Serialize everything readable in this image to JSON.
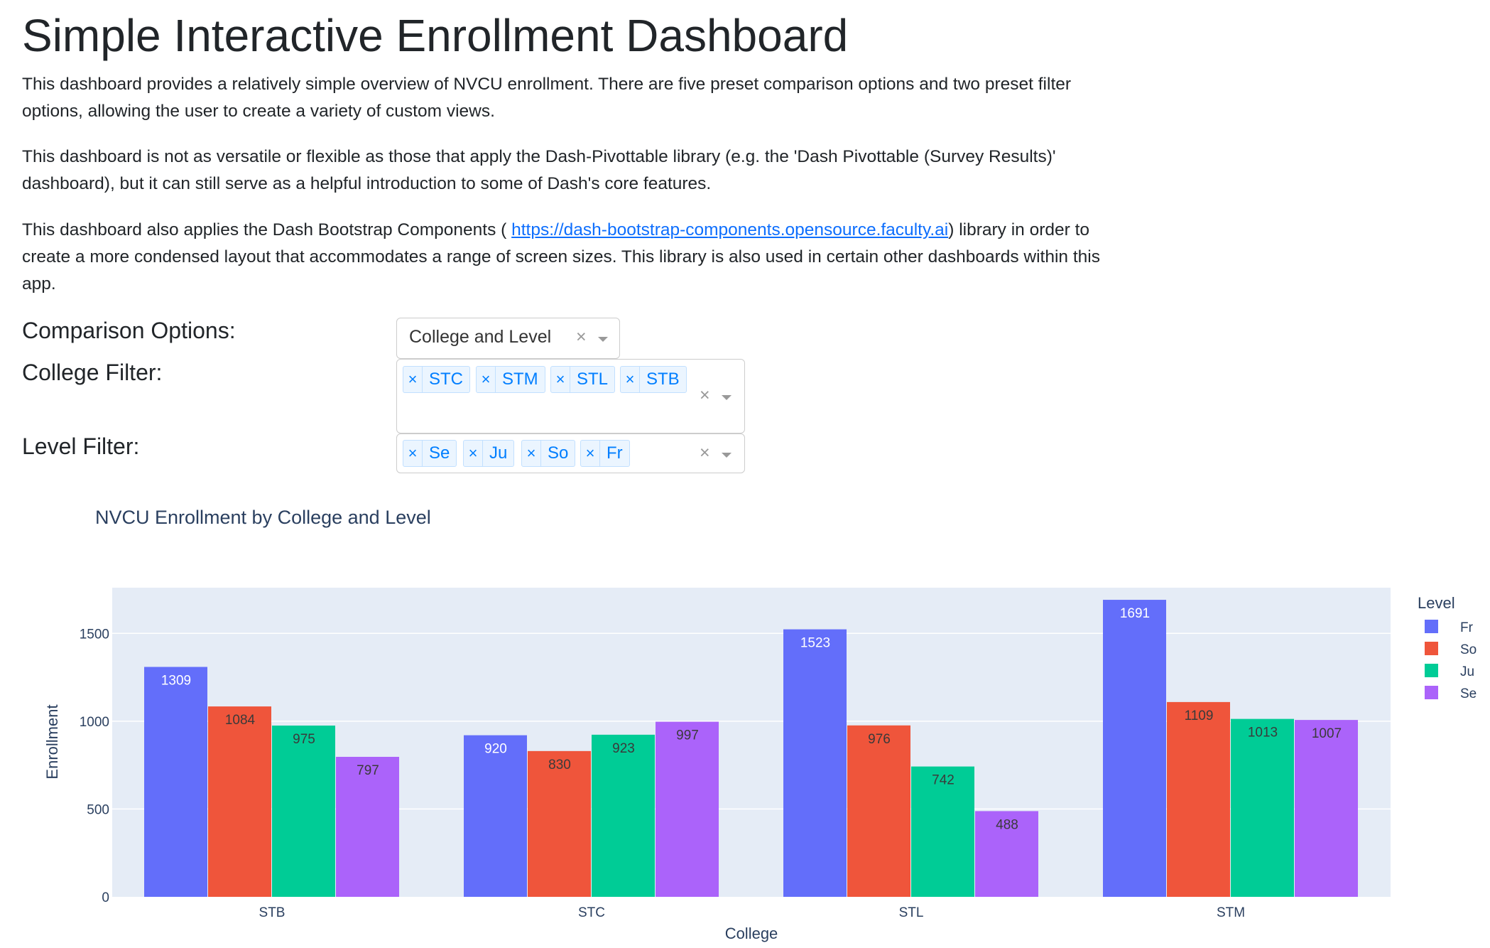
{
  "page": {
    "title": "Simple Interactive Enrollment Dashboard",
    "paragraph1": "This dashboard provides a relatively simple overview of NVCU enrollment. There are five preset comparison options and two preset filter options, allowing the user to create a variety of custom views.",
    "paragraph2": "This dashboard is not as versatile or flexible as those that apply the Dash-Pivottable library (e.g. the 'Dash Pivottable (Survey Results)' dashboard), but it can still serve as a helpful introduction to some of Dash's core features.",
    "paragraph3_before": "This dashboard also applies the Dash Bootstrap Components ( ",
    "paragraph3_link": "https://dash-bootstrap-components.opensource.faculty.ai",
    "paragraph3_after": ") library in order to create a more condensed layout that accommodates a range of screen sizes. This library is also used in certain other dashboards within this app."
  },
  "controls": {
    "comparison_label": "Comparison Options:",
    "comparison_value": "College and Level",
    "college_label": "College Filter:",
    "college_chips": [
      "STC",
      "STM",
      "STL",
      "STB"
    ],
    "level_label": "Level Filter:",
    "level_chips": [
      "Se",
      "Ju",
      "So",
      "Fr"
    ],
    "clear_glyph": "×"
  },
  "chart_data": {
    "type": "bar",
    "title": "NVCU Enrollment by College and Level",
    "xlabel": "College",
    "ylabel": "Enrollment",
    "categories": [
      "STB",
      "STC",
      "STL",
      "STM"
    ],
    "ylim": [
      0,
      1760
    ],
    "yticks": [
      0,
      500,
      1000,
      1500
    ],
    "grid": true,
    "legend_title": "Level",
    "legend_placement": "top-right outside",
    "series": [
      {
        "name": "Fr",
        "color": "#636efa",
        "values": [
          1309,
          920,
          1523,
          1691
        ]
      },
      {
        "name": "So",
        "color": "#ef553b",
        "values": [
          1084,
          830,
          976,
          1109
        ]
      },
      {
        "name": "Ju",
        "color": "#00cc96",
        "values": [
          975,
          923,
          742,
          1013
        ]
      },
      {
        "name": "Se",
        "color": "#ab63fa",
        "values": [
          797,
          997,
          488,
          1007
        ]
      }
    ]
  }
}
